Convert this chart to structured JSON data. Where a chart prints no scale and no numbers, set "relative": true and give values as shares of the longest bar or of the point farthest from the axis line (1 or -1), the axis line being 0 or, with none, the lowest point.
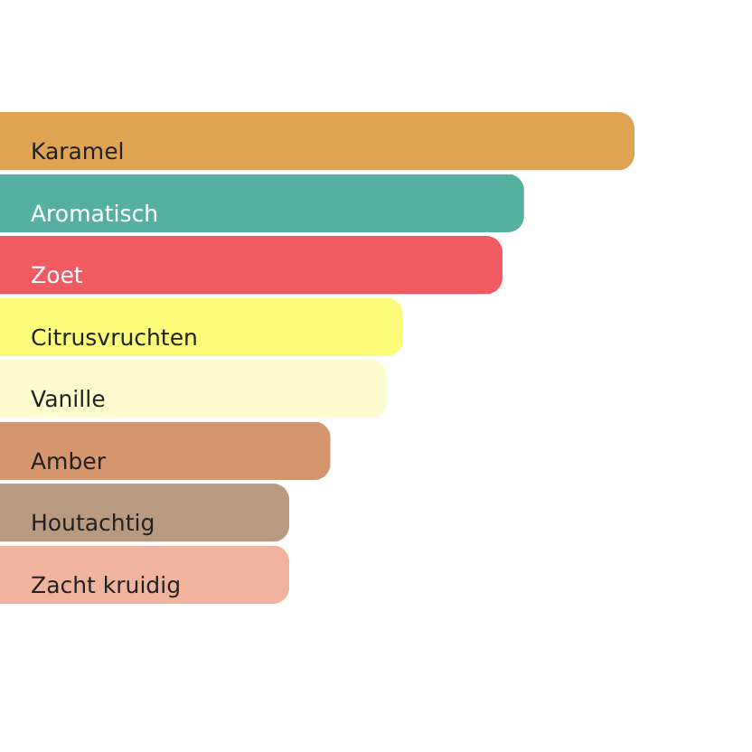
{
  "chart_data": {
    "type": "bar",
    "orientation": "horizontal",
    "relative": true,
    "categories": [
      "Karamel",
      "Aromatisch",
      "Zoet",
      "Citrusvruchten",
      "Vanille",
      "Amber",
      "Houtachtig",
      "Zacht kruidig"
    ],
    "values": [
      1,
      0.826,
      0.792,
      0.635,
      0.61,
      0.521,
      0.456,
      0.456
    ],
    "colors": [
      "#dea353",
      "#56b09f",
      "#f05a61",
      "#fafc7a",
      "#fdfecf",
      "#d4956f",
      "#b79a80",
      "#efb39e"
    ]
  }
}
